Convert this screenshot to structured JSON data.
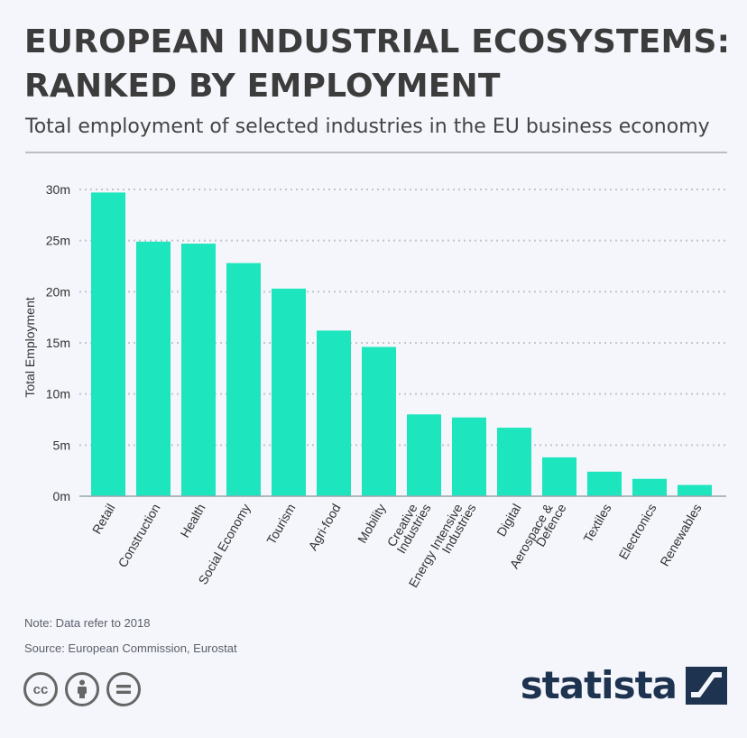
{
  "header": {
    "title_line1": "EUROPEAN INDUSTRIAL ECOSYSTEMS:",
    "title_line2": "RANKED BY EMPLOYMENT",
    "subtitle": "Total employment of selected industries in the EU business economy"
  },
  "footer": {
    "note": "Note: Data refer to 2018",
    "source": "Source: European Commission, Eurostat",
    "brand": "statista",
    "license_icons": [
      "cc-icon",
      "attribution-icon",
      "no-derivatives-icon"
    ]
  },
  "chart_data": {
    "type": "bar",
    "title": "EUROPEAN INDUSTRIAL ECOSYSTEMS: RANKED BY EMPLOYMENT",
    "subtitle": "Total employment of selected industries in the EU business economy",
    "xlabel": "",
    "ylabel": "Total Employment",
    "ylim": [
      0,
      30
    ],
    "yticks": [
      0,
      5,
      10,
      15,
      20,
      25,
      30
    ],
    "ytick_labels": [
      "0m",
      "5m",
      "10m",
      "15m",
      "20m",
      "25m",
      "30m"
    ],
    "grid": true,
    "bar_color": "#1de5bd",
    "categories": [
      [
        "Retail"
      ],
      [
        "Construction"
      ],
      [
        "Health"
      ],
      [
        "Social Economy"
      ],
      [
        "Tourism"
      ],
      [
        "Agri-food"
      ],
      [
        "Mobility"
      ],
      [
        "Creative",
        "Industries"
      ],
      [
        "Energy Intensive",
        "Industries"
      ],
      [
        "Digital"
      ],
      [
        "Aerospace &",
        "Defence"
      ],
      [
        "Textiles"
      ],
      [
        "Electronics"
      ],
      [
        "Renewables"
      ]
    ],
    "values": [
      29.7,
      24.9,
      24.7,
      22.8,
      20.3,
      16.2,
      14.6,
      8.0,
      7.7,
      6.7,
      3.8,
      2.4,
      1.7,
      1.1
    ]
  }
}
